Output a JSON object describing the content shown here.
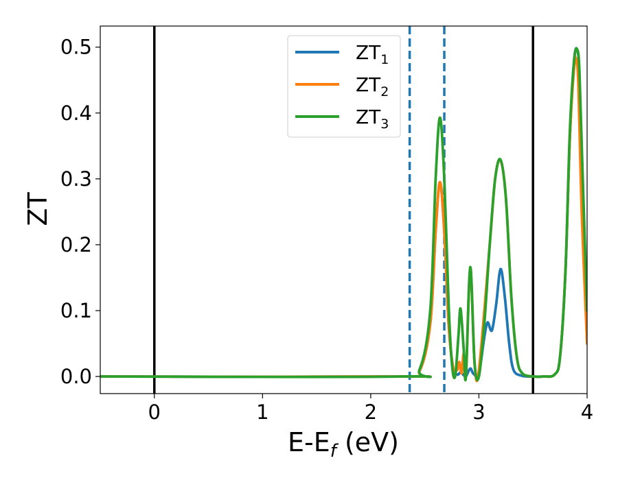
{
  "chart_data": {
    "type": "line",
    "xlabel": {
      "main": "E-E",
      "sub": "f",
      "suffix": " (eV)"
    },
    "ylabel": "ZT",
    "xlim": [
      -0.5,
      4.0
    ],
    "ylim": [
      -0.026,
      0.532
    ],
    "xticks": [
      {
        "value": 0,
        "label": "0"
      },
      {
        "value": 1,
        "label": "1"
      },
      {
        "value": 2,
        "label": "2"
      },
      {
        "value": 3,
        "label": "3"
      },
      {
        "value": 4,
        "label": "4"
      }
    ],
    "yticks": [
      {
        "value": 0.0,
        "label": "0.0"
      },
      {
        "value": 0.1,
        "label": "0.1"
      },
      {
        "value": 0.2,
        "label": "0.2"
      },
      {
        "value": 0.3,
        "label": "0.3"
      },
      {
        "value": 0.4,
        "label": "0.4"
      },
      {
        "value": 0.5,
        "label": "0.5"
      }
    ],
    "grid": false,
    "legend": {
      "placement": "top-center"
    },
    "vlines": [
      {
        "x": 0.0,
        "color": "#000000",
        "style": "solid"
      },
      {
        "x": 3.5,
        "color": "#000000",
        "style": "solid"
      },
      {
        "x": 2.36,
        "color": "#1f77b4",
        "style": "dashed"
      },
      {
        "x": 2.68,
        "color": "#1f77b4",
        "style": "dashed"
      }
    ],
    "series": [
      {
        "name": "ZT",
        "name_sub": "1",
        "color": "#1f77b4",
        "x": [
          -0.5,
          2.3,
          2.45,
          2.55,
          2.6,
          2.64,
          2.68,
          2.72,
          2.76,
          2.8,
          2.83,
          2.86,
          2.88,
          2.92,
          2.95,
          3.0,
          3.05,
          3.08,
          3.12,
          3.16,
          3.2,
          3.24,
          3.28,
          3.32,
          3.4,
          3.5,
          3.6,
          3.7,
          3.75,
          3.8,
          3.84,
          3.88,
          3.91,
          3.93,
          3.96,
          4.0
        ],
        "y": [
          0.0,
          0.0,
          0.008,
          0.08,
          0.22,
          0.295,
          0.22,
          0.08,
          0.015,
          0.003,
          0.006,
          0.002,
          0.0,
          0.012,
          0.004,
          0.005,
          0.06,
          0.082,
          0.07,
          0.11,
          0.163,
          0.12,
          0.05,
          0.01,
          0.001,
          0.0,
          0.0,
          0.003,
          0.03,
          0.16,
          0.36,
          0.48,
          0.495,
          0.45,
          0.25,
          0.05
        ]
      },
      {
        "name": "ZT",
        "name_sub": "2",
        "color": "#ff7f0e",
        "x": [
          -0.5,
          2.3,
          2.45,
          2.55,
          2.6,
          2.64,
          2.68,
          2.72,
          2.76,
          2.8,
          2.82,
          2.84,
          2.86,
          2.88,
          2.92,
          2.96,
          3.0,
          3.1,
          3.15,
          3.2,
          3.25,
          3.3,
          3.35,
          3.4,
          3.5,
          3.6,
          3.7,
          3.75,
          3.8,
          3.84,
          3.88,
          3.9,
          3.92,
          3.95,
          4.0
        ],
        "y": [
          0.0,
          0.0,
          0.008,
          0.08,
          0.22,
          0.295,
          0.22,
          0.08,
          0.015,
          0.01,
          0.022,
          0.005,
          0.035,
          0.0,
          0.165,
          0.02,
          0.01,
          0.2,
          0.3,
          0.328,
          0.27,
          0.12,
          0.03,
          0.005,
          0.0,
          0.0,
          0.003,
          0.03,
          0.16,
          0.36,
          0.47,
          0.48,
          0.44,
          0.25,
          0.05
        ]
      },
      {
        "name": "ZT",
        "name_sub": "3",
        "color": "#2ca02c",
        "x": [
          -0.5,
          2.3,
          2.45,
          2.55,
          2.6,
          2.64,
          2.68,
          2.72,
          2.75,
          2.78,
          2.81,
          2.83,
          2.86,
          2.88,
          2.92,
          2.96,
          3.0,
          3.05,
          3.1,
          3.15,
          3.2,
          3.25,
          3.3,
          3.35,
          3.4,
          3.5,
          3.6,
          3.7,
          3.75,
          3.8,
          3.84,
          3.88,
          3.91,
          3.93,
          3.96,
          4.0
        ],
        "y": [
          0.0,
          0.0,
          0.01,
          0.1,
          0.3,
          0.393,
          0.3,
          0.11,
          0.02,
          0.0,
          0.06,
          0.103,
          0.04,
          0.0,
          0.166,
          0.02,
          0.0,
          0.08,
          0.2,
          0.3,
          0.329,
          0.27,
          0.12,
          0.03,
          0.005,
          0.0,
          0.0,
          0.003,
          0.03,
          0.16,
          0.37,
          0.48,
          0.496,
          0.46,
          0.3,
          0.1
        ]
      }
    ]
  }
}
